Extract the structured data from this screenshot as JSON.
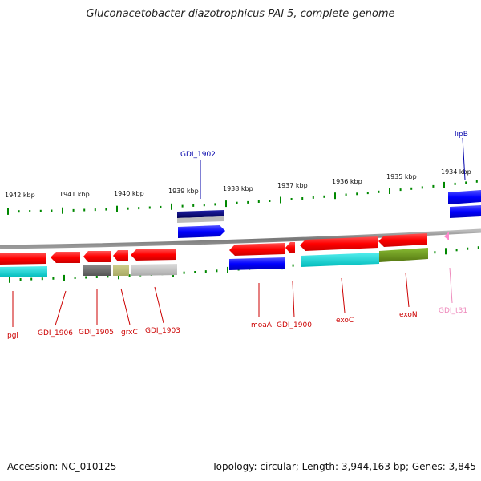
{
  "title": "Gluconacetobacter diazotrophicus PAl 5, complete genome",
  "footer": {
    "accession": "Accession: NC_010125",
    "summary": "Topology: circular; Length: 3,944,163 bp; Genes: 3,845"
  },
  "ruler": {
    "labels": [
      "1942 kbp",
      "1941 kbp",
      "1940 kbp",
      "1939 kbp",
      "1938 kbp",
      "1937 kbp",
      "1936 kbp",
      "1935 kbp",
      "1934 kbp"
    ]
  },
  "gene_labels": {
    "top": [
      {
        "text": "GDI_1902",
        "color": "#0000aa"
      },
      {
        "text": "lipB",
        "color": "#0000aa"
      }
    ],
    "bottom": [
      {
        "text": "pgl",
        "color": "#cc0000"
      },
      {
        "text": "GDI_1906",
        "color": "#cc0000"
      },
      {
        "text": "GDI_1905",
        "color": "#cc0000"
      },
      {
        "text": "grxC",
        "color": "#cc0000"
      },
      {
        "text": "GDI_1903",
        "color": "#cc0000"
      },
      {
        "text": "moaA",
        "color": "#cc0000"
      },
      {
        "text": "GDI_1900",
        "color": "#cc0000"
      },
      {
        "text": "exoC",
        "color": "#cc0000"
      },
      {
        "text": "exoN",
        "color": "#cc0000"
      },
      {
        "text": "GDI_t31",
        "color": "#ee88bb"
      }
    ]
  },
  "colors": {
    "cds": "#ff0000",
    "cds_top": "#0000ff",
    "backbone": "#888888",
    "tick": "#008800",
    "cog_cyan": "#00cccc",
    "cog_gray": "#666666",
    "cog_khaki": "#bbbb77",
    "cog_lightgray": "#bbbbbb",
    "cog_olive": "#669922",
    "cog_navy": "#000077",
    "trna": "#ff88cc"
  }
}
